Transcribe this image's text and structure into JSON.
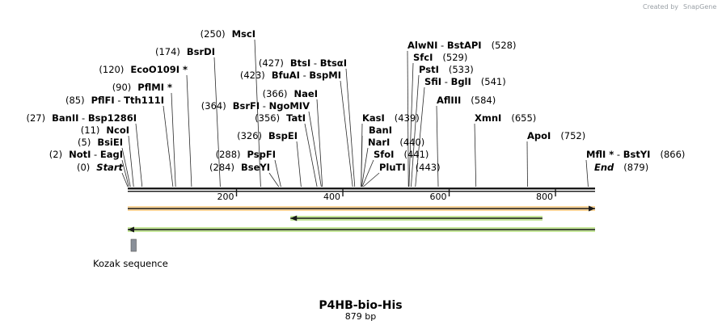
{
  "credit": {
    "text": "Created by",
    "brand": "SnapGene"
  },
  "plasmid": {
    "name": "P4HB-bio-His",
    "length_label": "879 bp",
    "length": 879
  },
  "ticks": [
    {
      "value": 200,
      "label": "200"
    },
    {
      "value": 400,
      "label": "400"
    },
    {
      "value": 600,
      "label": "600"
    },
    {
      "value": 800,
      "label": "800"
    }
  ],
  "sites": [
    {
      "pos": 0,
      "pos_label": "(0)",
      "name": "Start",
      "italic": true
    },
    {
      "pos": 2,
      "pos_label": "(2)",
      "name": "NotI",
      "name2": "EagI"
    },
    {
      "pos": 5,
      "pos_label": "(5)",
      "name": "BsiEI"
    },
    {
      "pos": 11,
      "pos_label": "(11)",
      "name": "NcoI"
    },
    {
      "pos": 27,
      "pos_label": "(27)",
      "name": "BanII",
      "name2": "Bsp1286I"
    },
    {
      "pos": 85,
      "pos_label": "(85)",
      "name": "PflFI",
      "name2": "Tth111I"
    },
    {
      "pos": 90,
      "pos_label": "(90)",
      "name": "PflMI *"
    },
    {
      "pos": 120,
      "pos_label": "(120)",
      "name": "EcoO109I *"
    },
    {
      "pos": 174,
      "pos_label": "(174)",
      "name": "BsrDI"
    },
    {
      "pos": 250,
      "pos_label": "(250)",
      "name": "MscI"
    },
    {
      "pos": 284,
      "pos_label": "(284)",
      "name": "BseYI"
    },
    {
      "pos": 288,
      "pos_label": "(288)",
      "name": "PspFI"
    },
    {
      "pos": 326,
      "pos_label": "(326)",
      "name": "BspEI"
    },
    {
      "pos": 356,
      "pos_label": "(356)",
      "name": "TatI"
    },
    {
      "pos": 364,
      "pos_label": "(364)",
      "name": "BsrFI",
      "name2": "NgoMIV"
    },
    {
      "pos": 366,
      "pos_label": "(366)",
      "name": "NaeI"
    },
    {
      "pos": 423,
      "pos_label": "(423)",
      "name": "BfuAI",
      "name2": "BspMI"
    },
    {
      "pos": 427,
      "pos_label": "(427)",
      "name": "BtsI",
      "name2": "BtsαI"
    },
    {
      "pos": 439,
      "pos_label": "(439)",
      "name": "KasI"
    },
    {
      "pos": 439,
      "pos_label": "",
      "name": "BanI"
    },
    {
      "pos": 440,
      "pos_label": "(440)",
      "name": "NarI"
    },
    {
      "pos": 441,
      "pos_label": "(441)",
      "name": "SfoI"
    },
    {
      "pos": 443,
      "pos_label": "(443)",
      "name": "PluTI"
    },
    {
      "pos": 528,
      "pos_label": "(528)",
      "name": "AlwNI",
      "name2": "BstAPI"
    },
    {
      "pos": 529,
      "pos_label": "(529)",
      "name": "SfcI"
    },
    {
      "pos": 533,
      "pos_label": "(533)",
      "name": "PstI"
    },
    {
      "pos": 541,
      "pos_label": "(541)",
      "name": "SfiI",
      "name2": "BglI"
    },
    {
      "pos": 584,
      "pos_label": "(584)",
      "name": "AflIII"
    },
    {
      "pos": 655,
      "pos_label": "(655)",
      "name": "XmnI"
    },
    {
      "pos": 752,
      "pos_label": "(752)",
      "name": "ApoI"
    },
    {
      "pos": 866,
      "pos_label": "(866)",
      "name": "MflI *",
      "name2": "BstYI"
    },
    {
      "pos": 879,
      "pos_label": "(879)",
      "name": "End",
      "italic": true
    }
  ],
  "features": [
    {
      "name": "orf-forward-full",
      "start": 1,
      "end": 879,
      "direction": "forward",
      "color": "#f0a020"
    },
    {
      "name": "orf-reverse-inner",
      "start": 307,
      "end": 780,
      "direction": "reverse",
      "color": "#7ec820"
    },
    {
      "name": "orf-reverse-full",
      "start": 1,
      "end": 879,
      "direction": "reverse",
      "color": "#7ec820"
    },
    {
      "name": "kozak-box",
      "start": 3,
      "end": 14,
      "label": "Kozak sequence",
      "color": "#8a9099"
    }
  ]
}
